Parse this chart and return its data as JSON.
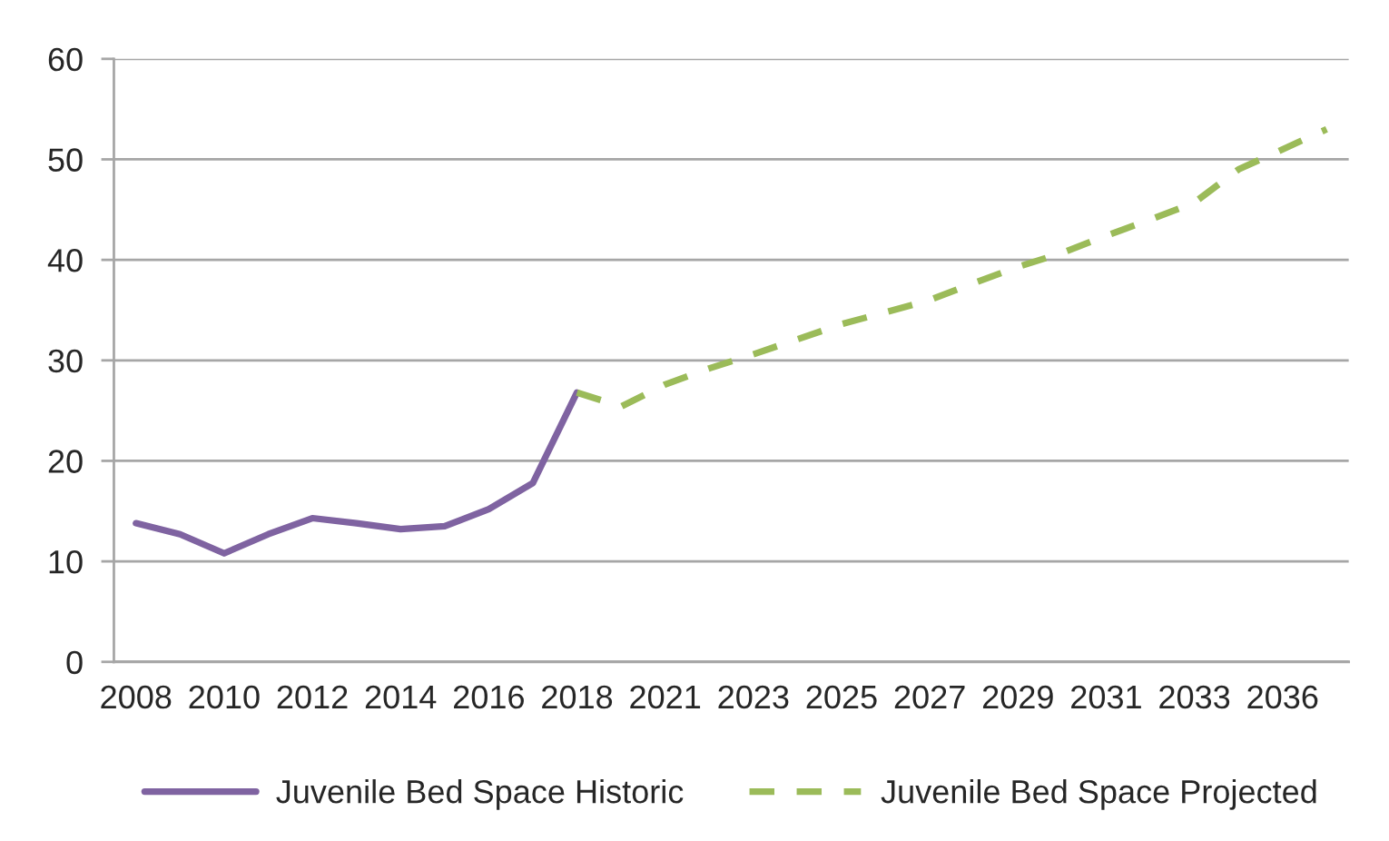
{
  "chart_data": {
    "type": "line",
    "categories": [
      "2008",
      null,
      "2010",
      null,
      "2012",
      null,
      "2014",
      null,
      "2016",
      null,
      "2018",
      null,
      "2021",
      null,
      "2023",
      null,
      "2025",
      null,
      "2027",
      null,
      "2029",
      null,
      "2031",
      null,
      "2033",
      null,
      "2036",
      null
    ],
    "series": [
      {
        "name": "Juvenile Bed Space Historic",
        "color": "#7f63a1",
        "line_style": "solid",
        "values": [
          13.8,
          12.7,
          10.8,
          12.7,
          14.3,
          13.8,
          13.2,
          13.5,
          15.2,
          17.8,
          26.8,
          null,
          null,
          null,
          null,
          null,
          null,
          null,
          null,
          null,
          null,
          null,
          null,
          null,
          null,
          null,
          null,
          null
        ]
      },
      {
        "name": "Juvenile Bed Space Projected",
        "color": "#9bbb59",
        "line_style": "dashed",
        "values": [
          null,
          null,
          null,
          null,
          null,
          null,
          null,
          null,
          null,
          null,
          26.8,
          25.4,
          27.6,
          29.2,
          30.6,
          32.1,
          33.6,
          34.8,
          36.0,
          37.7,
          39.3,
          40.7,
          42.4,
          44.0,
          45.7,
          49.0,
          51.0,
          53.0
        ]
      }
    ],
    "ylim": [
      0,
      60
    ],
    "yticks": [
      0,
      10,
      20,
      30,
      40,
      50,
      60
    ],
    "grid": "y",
    "legend": "bottom"
  }
}
